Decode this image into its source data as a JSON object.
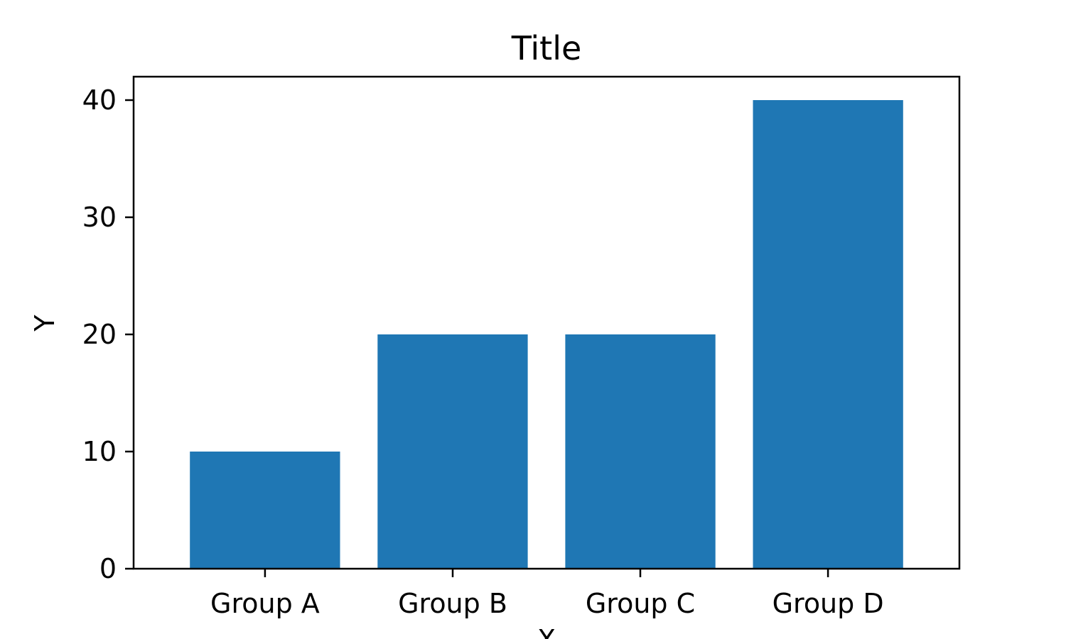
{
  "chart_data": {
    "type": "bar",
    "title": "Title",
    "xlabel": "X",
    "ylabel": "Y",
    "categories": [
      "Group A",
      "Group B",
      "Group C",
      "Group D"
    ],
    "values": [
      10,
      20,
      20,
      40
    ],
    "ylim": [
      0,
      42
    ],
    "yticks": [
      0,
      10,
      20,
      30,
      40
    ],
    "bar_color": "#1f77b4",
    "grid": false,
    "legend": "none"
  }
}
